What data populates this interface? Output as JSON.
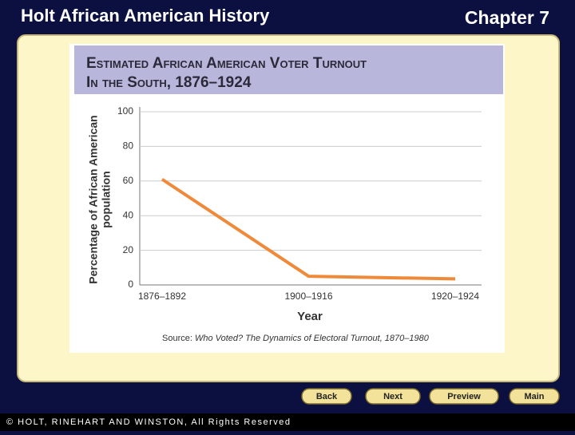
{
  "header": {
    "title": "Holt African American History",
    "chapter": "Chapter 7"
  },
  "chart_data": {
    "type": "line",
    "title": [
      "Estimated African American Voter Turnout",
      "In the South, 1876–1924"
    ],
    "ylabel": [
      "Percentage of African American",
      "population"
    ],
    "xlabel": "Year",
    "categories": [
      "1876–1892",
      "1900–1916",
      "1920–1924"
    ],
    "series": [
      {
        "name": "Turnout",
        "color": "#ef8a3a",
        "values": [
          61,
          5,
          3.5
        ]
      }
    ],
    "ylim": [
      0,
      100
    ],
    "yticks": [
      0,
      20,
      40,
      60,
      80,
      100
    ],
    "grid": true,
    "source_prefix": "Source:",
    "source_title": "Who Voted? The Dynamics of Electoral Turnout, 1870–1980"
  },
  "nav": [
    "Back",
    "Next",
    "Preview",
    "Main"
  ],
  "footer": "© HOLT, RINEHART AND WINSTON, All Rights Reserved"
}
